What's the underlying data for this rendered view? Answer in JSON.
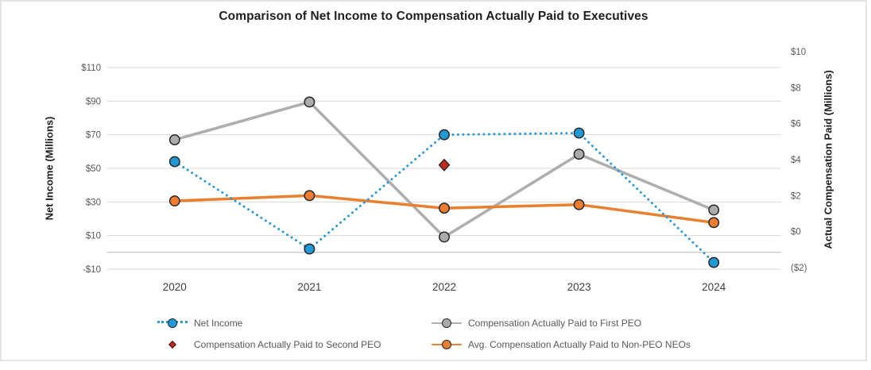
{
  "chart_data": {
    "type": "line",
    "title": "Comparison of Net Income to Compensation Actually Paid to Executives",
    "categories": [
      "2020",
      "2021",
      "2022",
      "2023",
      "2024"
    ],
    "left_axis": {
      "label": "Net Income (Millions)",
      "range": [
        -10,
        110
      ],
      "tick_step": 20,
      "ticks": [
        {
          "label": "$110",
          "value": 110
        },
        {
          "label": "$90",
          "value": 90
        },
        {
          "label": "$70",
          "value": 70
        },
        {
          "label": "$50",
          "value": 50
        },
        {
          "label": "$30",
          "value": 30
        },
        {
          "label": "$10",
          "value": 10
        },
        {
          "label": "-$10",
          "value": -10
        }
      ]
    },
    "right_axis": {
      "label": "Actual Compensation Paid (Millions)",
      "range": [
        -2,
        10
      ],
      "tick_step": 2,
      "ticks": [
        {
          "label": "$10",
          "value": 10
        },
        {
          "label": "$8",
          "value": 8
        },
        {
          "label": "$6",
          "value": 6
        },
        {
          "label": "$4",
          "value": 4
        },
        {
          "label": "$2",
          "value": 2
        },
        {
          "label": "$0",
          "value": 0
        },
        {
          "label": "($2)",
          "value": -2
        }
      ]
    },
    "series": [
      {
        "name": "Net Income",
        "axis": "left",
        "line_style": "dotted",
        "marker": "circle",
        "color": "#2e9ad4",
        "marker_fill": "#2199d6",
        "values": [
          54,
          2,
          70,
          71,
          -6
        ]
      },
      {
        "name": "Compensation Actually Paid to First PEO",
        "axis": "right",
        "line_style": "solid",
        "marker": "circle",
        "color": "#aeaeae",
        "marker_fill": "#ababab",
        "values": [
          5.1,
          7.2,
          -0.3,
          4.3,
          1.2
        ]
      },
      {
        "name": "Compensation Actually Paid to Second PEO",
        "axis": "right",
        "line_style": "none",
        "marker": "diamond",
        "color": "#c8281e",
        "marker_fill": "#c8281e",
        "values": [
          null,
          null,
          3.7,
          null,
          null
        ]
      },
      {
        "name": "Avg. Compensation Actually Paid to Non-PEO NEOs",
        "axis": "right",
        "line_style": "solid",
        "marker": "circle",
        "color": "#e8802f",
        "marker_fill": "#ed7d31",
        "values": [
          1.7,
          2.0,
          1.3,
          1.5,
          0.5
        ]
      }
    ],
    "grid": true,
    "legend_position": "bottom",
    "marker_stroke": "#262626",
    "gridline_color": "#d9d9d9",
    "axis_line_color": "#bfbfbf"
  }
}
